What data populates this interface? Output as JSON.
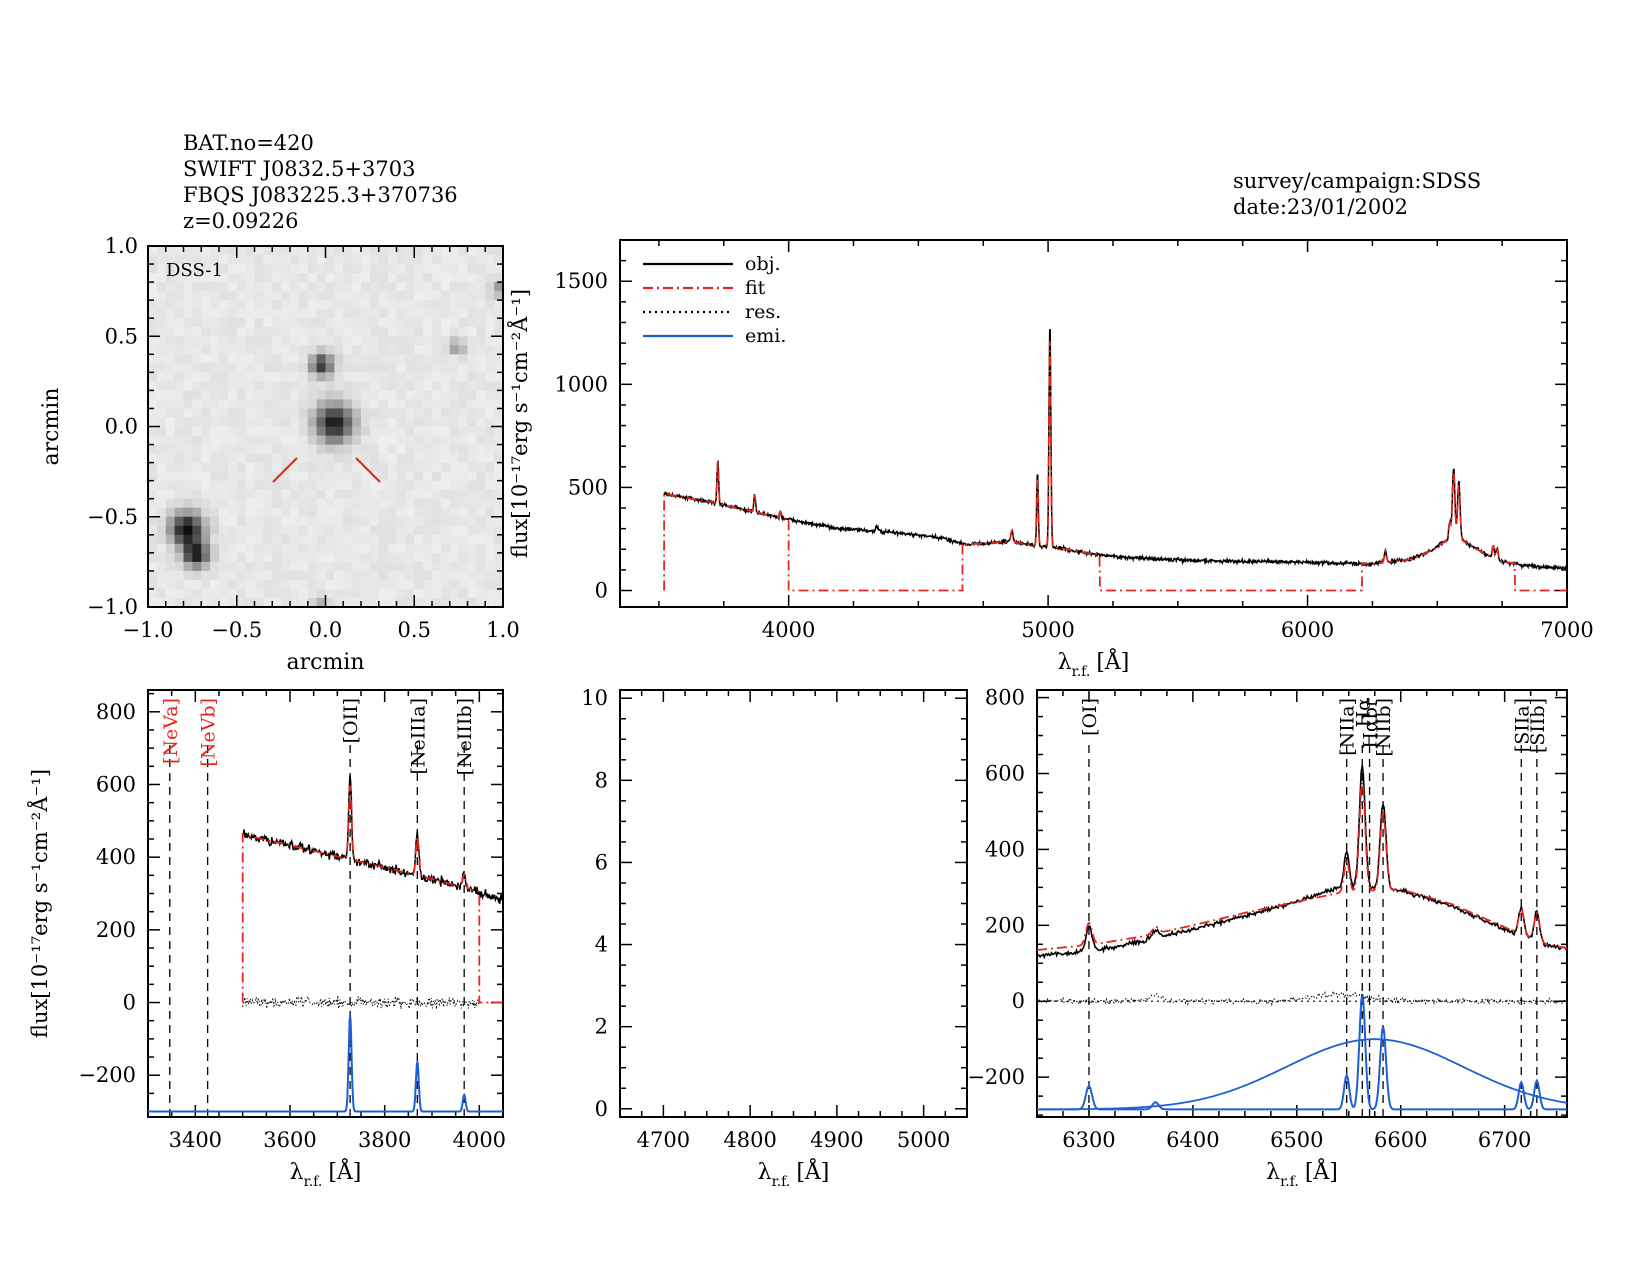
{
  "header": {
    "bat_no": "BAT.no=420",
    "swift": "SWIFT J0832.5+3703",
    "fbqs": "FBQS J083225.3+370736",
    "z": "z=0.09226",
    "survey": "survey/campaign:SDSS",
    "date": "date:23/01/2002"
  },
  "colors": {
    "obj": "#000000",
    "fit": "#e8251b",
    "emi": "#1f5fd6",
    "ref_line": "#000000"
  },
  "image_panel": {
    "label": "DSS-1",
    "xlabel": "arcmin",
    "ylabel": "arcmin",
    "xticks": [
      "−1.0",
      "−0.5",
      "0.0",
      "0.5",
      "1.0"
    ],
    "yticks": [
      "−1.0",
      "−0.5",
      "0.0",
      "0.5",
      "1.0"
    ],
    "range": [
      -1.0,
      1.0
    ],
    "sources": [
      {
        "x": 0.05,
        "y": 0.02,
        "r": 0.075,
        "strength": 0.9
      },
      {
        "x": -0.02,
        "y": 0.34,
        "r": 0.045,
        "strength": 0.75
      },
      {
        "x": -0.78,
        "y": -0.57,
        "r": 0.065,
        "strength": 0.95
      },
      {
        "x": -0.73,
        "y": -0.71,
        "r": 0.05,
        "strength": 0.85
      },
      {
        "x": 0.74,
        "y": 0.44,
        "r": 0.03,
        "strength": 0.35
      },
      {
        "x": 0.98,
        "y": 0.76,
        "r": 0.03,
        "strength": 0.35
      },
      {
        "x": -0.03,
        "y": -1.02,
        "r": 0.04,
        "strength": 0.4
      }
    ]
  },
  "chart_data": [
    {
      "id": "full_spectrum",
      "type": "line",
      "xlim": [
        3350,
        7000
      ],
      "ylim": [
        -80,
        1700
      ],
      "xticks": [
        4000,
        5000,
        6000,
        7000
      ],
      "yticks": [
        0,
        500,
        1000,
        1500
      ],
      "xlabel_main": "λ",
      "xlabel_sub": "r.f.",
      "xlabel_unit": "[Å]",
      "ylabel": "flux[10⁻¹⁷erg s⁻¹cm⁻²Å⁻¹]",
      "legend": [
        {
          "label": "obj.",
          "style": "solid",
          "color": "#000000"
        },
        {
          "label": "fit",
          "style": "dashdot",
          "color": "#e8251b"
        },
        {
          "label": "res.",
          "style": "dotted",
          "color": "#000000"
        },
        {
          "label": "emi.",
          "style": "solid",
          "color": "#1f5fd6"
        }
      ],
      "legend_position": "top-left",
      "continuum": [
        [
          3520,
          470
        ],
        [
          3600,
          450
        ],
        [
          3700,
          430
        ],
        [
          3800,
          400
        ],
        [
          3900,
          372
        ],
        [
          4000,
          345
        ],
        [
          4100,
          320
        ],
        [
          4200,
          300
        ],
        [
          4300,
          290
        ],
        [
          4400,
          282
        ],
        [
          4500,
          268
        ],
        [
          4600,
          252
        ],
        [
          4680,
          225
        ],
        [
          4750,
          228
        ],
        [
          4850,
          238
        ],
        [
          4950,
          218
        ],
        [
          5050,
          205
        ],
        [
          5150,
          180
        ],
        [
          5300,
          160
        ],
        [
          5500,
          148
        ],
        [
          5700,
          142
        ],
        [
          5900,
          140
        ],
        [
          6100,
          133
        ],
        [
          6250,
          130
        ],
        [
          6400,
          152
        ],
        [
          6480,
          195
        ],
        [
          6530,
          240
        ],
        [
          6600,
          240
        ],
        [
          6680,
          180
        ],
        [
          6750,
          140
        ],
        [
          6850,
          120
        ],
        [
          7000,
          108
        ]
      ],
      "lines": [
        {
          "x": 3727,
          "amp": 215,
          "sigma": 3
        },
        {
          "x": 3869,
          "amp": 90,
          "sigma": 3
        },
        {
          "x": 3968,
          "amp": 28,
          "sigma": 3
        },
        {
          "x": 4340,
          "amp": 25,
          "sigma": 4
        },
        {
          "x": 4861,
          "amp": 60,
          "sigma": 4
        },
        {
          "x": 4959,
          "amp": 355,
          "sigma": 3
        },
        {
          "x": 5007,
          "amp": 1095,
          "sigma": 3.5
        },
        {
          "x": 6300,
          "amp": 55,
          "sigma": 4
        },
        {
          "x": 6563,
          "amp": 350,
          "sigma": 5
        },
        {
          "x": 6583,
          "amp": 290,
          "sigma": 5
        },
        {
          "x": 6548,
          "amp": 90,
          "sigma": 4
        },
        {
          "x": 6716,
          "amp": 60,
          "sigma": 4
        },
        {
          "x": 6731,
          "amp": 55,
          "sigma": 4
        }
      ],
      "fit_windows": [
        [
          3520,
          4000
        ],
        [
          4670,
          5200
        ],
        [
          6210,
          6800
        ]
      ]
    },
    {
      "id": "blue_zoom",
      "type": "line",
      "xlim": [
        3300,
        4050
      ],
      "ylim": [
        -315,
        860
      ],
      "xticks": [
        3400,
        3600,
        3800,
        4000
      ],
      "yticks": [
        -200,
        0,
        200,
        400,
        600,
        800
      ],
      "xlabel_main": "λ",
      "xlabel_sub": "r.f.",
      "xlabel_unit": "[Å]",
      "ylabel": "flux[10⁻¹⁷erg s⁻¹cm⁻²Å⁻¹]",
      "continuum": [
        [
          3500,
          462
        ],
        [
          3600,
          432
        ],
        [
          3700,
          402
        ],
        [
          3800,
          372
        ],
        [
          3900,
          340
        ],
        [
          4000,
          305
        ],
        [
          4050,
          280
        ]
      ],
      "lines": [
        {
          "x": 3727,
          "amp": 230,
          "sigma": 3
        },
        {
          "x": 3869,
          "amp": 120,
          "sigma": 3
        },
        {
          "x": 3968,
          "amp": 40,
          "sigma": 3
        }
      ],
      "fit_range": [
        3500,
        4000
      ],
      "emi_base": -300,
      "ref_lines": [
        {
          "x": 3346,
          "label": "[NeVa]",
          "color": "#e8251b"
        },
        {
          "x": 3426,
          "label": "[NeVb]",
          "color": "#e8251b"
        },
        {
          "x": 3727,
          "label": "[OII]",
          "color": "#000000"
        },
        {
          "x": 3869,
          "label": "[NeIIIa]",
          "color": "#000000"
        },
        {
          "x": 3968,
          "label": "[NeIIIb]",
          "color": "#000000"
        }
      ]
    },
    {
      "id": "hbeta_zoom",
      "type": "line",
      "xlim": [
        4650,
        5050
      ],
      "ylim": [
        -0.2,
        10.2
      ],
      "xticks": [
        4700,
        4800,
        4900,
        5000
      ],
      "yticks": [
        0,
        2,
        4,
        6,
        8,
        10
      ],
      "xlabel_main": "λ",
      "xlabel_sub": "r.f.",
      "xlabel_unit": "[Å]"
    },
    {
      "id": "halpha_zoom",
      "type": "line",
      "xlim": [
        6250,
        6760
      ],
      "ylim": [
        -305,
        820
      ],
      "xticks": [
        6300,
        6400,
        6500,
        6600,
        6700
      ],
      "yticks": [
        -200,
        0,
        200,
        400,
        600,
        800
      ],
      "xlabel_main": "λ",
      "xlabel_sub": "r.f.",
      "xlabel_unit": "[Å]",
      "continuum": [
        [
          6250,
          120
        ],
        [
          6300,
          130
        ],
        [
          6350,
          158
        ],
        [
          6400,
          190
        ],
        [
          6450,
          225
        ],
        [
          6500,
          262
        ],
        [
          6540,
          300
        ],
        [
          6600,
          292
        ],
        [
          6650,
          250
        ],
        [
          6700,
          190
        ],
        [
          6740,
          148
        ],
        [
          6760,
          138
        ]
      ],
      "fit_continuum": [
        [
          6250,
          135
        ],
        [
          6300,
          148
        ],
        [
          6350,
          170
        ],
        [
          6400,
          200
        ],
        [
          6450,
          233
        ],
        [
          6500,
          262
        ],
        [
          6540,
          285
        ],
        [
          6600,
          295
        ],
        [
          6650,
          255
        ],
        [
          6700,
          195
        ],
        [
          6740,
          150
        ],
        [
          6760,
          140
        ]
      ],
      "lines": [
        {
          "x": 6300,
          "amp": 65,
          "sigma": 3
        },
        {
          "x": 6364,
          "amp": 20,
          "sigma": 3
        },
        {
          "x": 6548,
          "amp": 95,
          "sigma": 2.5
        },
        {
          "x": 6563,
          "amp": 320,
          "sigma": 2.8
        },
        {
          "x": 6583,
          "amp": 230,
          "sigma": 2.8
        },
        {
          "x": 6716,
          "amp": 75,
          "sigma": 2.5
        },
        {
          "x": 6731,
          "amp": 80,
          "sigma": 2.5
        }
      ],
      "broad": {
        "x": 6575,
        "amp": 185,
        "sigma": 85
      },
      "emi_base": -285,
      "ref_lines": [
        {
          "x": 6300,
          "label": "[OI]",
          "color": "#000000"
        },
        {
          "x": 6548,
          "label": "[NIIa]",
          "color": "#000000"
        },
        {
          "x": 6563,
          "label": "Hα",
          "color": "#000000"
        },
        {
          "x": 6570,
          "label": "Hαbr",
          "color": "#000000"
        },
        {
          "x": 6583,
          "label": "[NIIb]",
          "color": "#000000"
        },
        {
          "x": 6716,
          "label": "[SIIa]",
          "color": "#000000"
        },
        {
          "x": 6731,
          "label": "[SIIb]",
          "color": "#000000"
        }
      ]
    }
  ]
}
